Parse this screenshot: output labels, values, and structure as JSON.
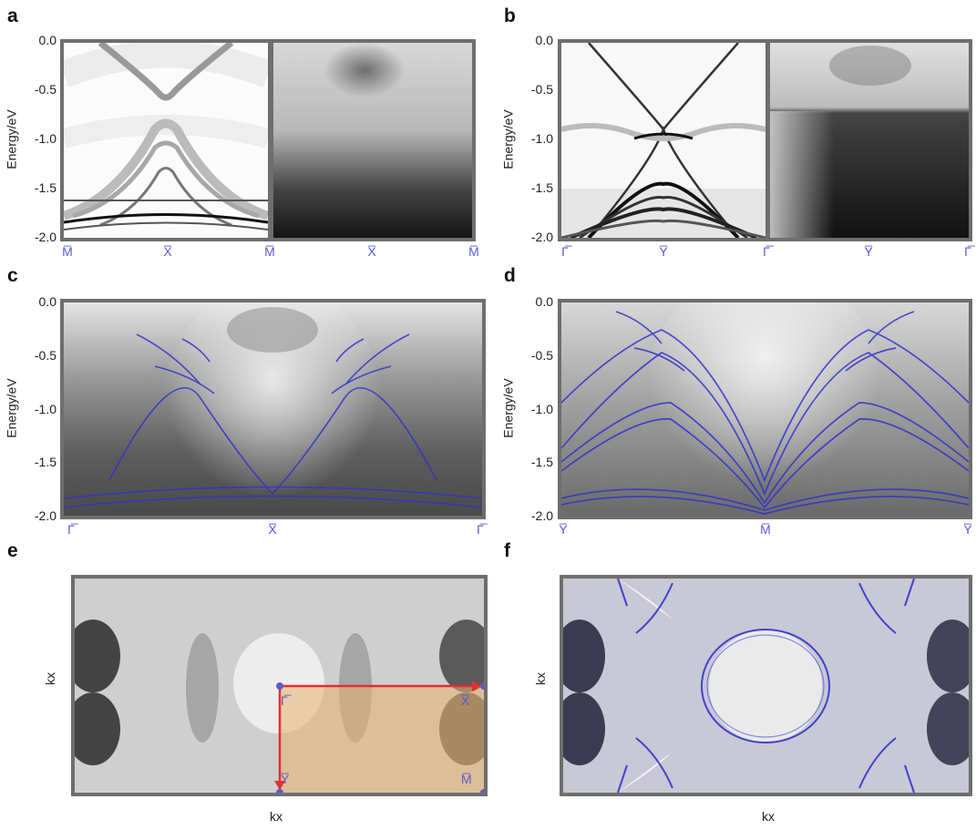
{
  "panels": {
    "a": {
      "label": "a",
      "ylabel": "Energy/eV",
      "kpoints": [
        "M̅",
        "X̅",
        "M̅",
        "X̅",
        "M̅"
      ]
    },
    "b": {
      "label": "b",
      "ylabel": "Energy/eV",
      "kpoints": [
        "Γ̅",
        "Y̅",
        "Γ̅",
        "Y̅",
        "Γ̅"
      ]
    },
    "c": {
      "label": "c",
      "ylabel": "Energy/eV",
      "kpoints": [
        "Γ̅",
        "X̅",
        "Γ̅"
      ]
    },
    "d": {
      "label": "d",
      "ylabel": "Energy/eV",
      "kpoints": [
        "Y̅",
        "M̅",
        "Y̅"
      ]
    },
    "e": {
      "label": "e",
      "ylabel": "kx",
      "xlabel": "kx",
      "bz_labels": [
        "Γ̅",
        "X̅",
        "Y̅",
        "M̅"
      ]
    },
    "f": {
      "label": "f",
      "ylabel": "kx",
      "xlabel": "kx"
    }
  },
  "yticks": [
    "0.0",
    "-0.5",
    "-1.0",
    "-1.5",
    "-2.0"
  ],
  "colors": {
    "frame": "#6e6e6e",
    "bands": "#3333cc",
    "path": "#e03030",
    "bz_fill": "#e8b070",
    "kpoint": "#5a5ad0"
  }
}
